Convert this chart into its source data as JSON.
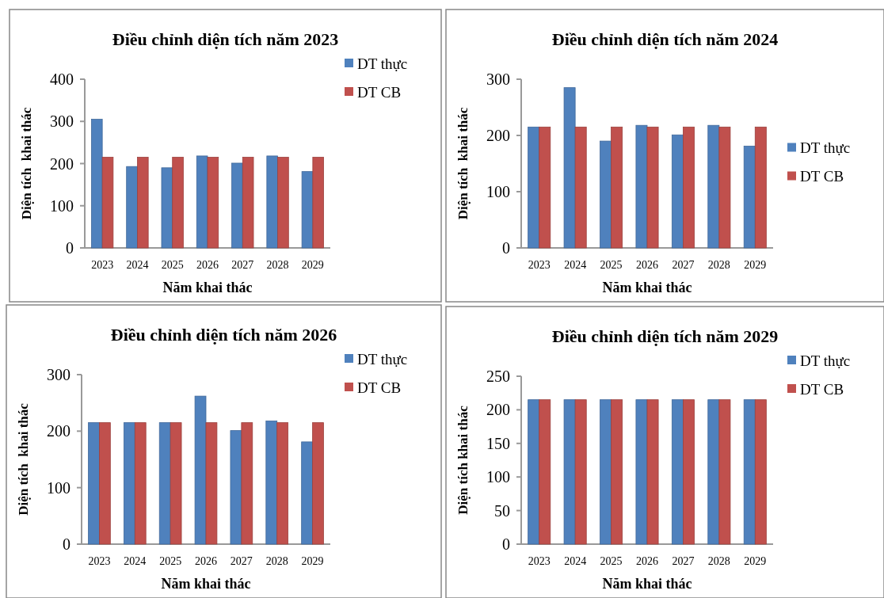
{
  "chart_data": [
    {
      "type": "bar",
      "title": "Điều chỉnh diện tích năm 2023",
      "xlabel": "Năm khai thác",
      "ylabel": "Diện tích  khai thác",
      "categories": [
        "2023",
        "2024",
        "2025",
        "2026",
        "2027",
        "2028",
        "2029"
      ],
      "series": [
        {
          "name": "DT thực",
          "color": "#4f81bd",
          "values": [
            305,
            193,
            190,
            218,
            201,
            218,
            181
          ]
        },
        {
          "name": "DT CB",
          "color": "#c0504d",
          "values": [
            215,
            215,
            215,
            215,
            215,
            215,
            215
          ]
        }
      ],
      "ylim": [
        0,
        400
      ],
      "yticks": [
        0,
        100,
        200,
        300,
        400
      ],
      "grid": false,
      "legend": "top right"
    },
    {
      "type": "bar",
      "title": "Điều chỉnh diện tích năm 2024",
      "xlabel": "Năm khai thác",
      "ylabel": "Diện tích  khai thác",
      "categories": [
        "2023",
        "2024",
        "2025",
        "2026",
        "2027",
        "2028",
        "2029"
      ],
      "series": [
        {
          "name": "DT thực",
          "color": "#4f81bd",
          "values": [
            215,
            285,
            190,
            218,
            201,
            218,
            181
          ]
        },
        {
          "name": "DT CB",
          "color": "#c0504d",
          "values": [
            215,
            215,
            215,
            215,
            215,
            215,
            215
          ]
        }
      ],
      "ylim": [
        0,
        300
      ],
      "yticks": [
        0,
        100,
        200,
        300
      ],
      "grid": false,
      "legend": "right"
    },
    {
      "type": "bar",
      "title": "Điều chỉnh diện tích năm 2026",
      "xlabel": "Năm khai thác",
      "ylabel": "Diện tích  khai thác",
      "categories": [
        "2023",
        "2024",
        "2025",
        "2026",
        "2027",
        "2028",
        "2029"
      ],
      "series": [
        {
          "name": "DT thực",
          "color": "#4f81bd",
          "values": [
            215,
            215,
            215,
            262,
            201,
            218,
            181
          ]
        },
        {
          "name": "DT CB",
          "color": "#c0504d",
          "values": [
            215,
            215,
            215,
            215,
            215,
            215,
            215
          ]
        }
      ],
      "ylim": [
        0,
        300
      ],
      "yticks": [
        0,
        100,
        200,
        300
      ],
      "grid": false,
      "legend": "top right"
    },
    {
      "type": "bar",
      "title": "Điều chỉnh diện tích năm 2029",
      "xlabel": "Năm khai thác",
      "ylabel": "Diện tích khai thác",
      "categories": [
        "2023",
        "2024",
        "2025",
        "2026",
        "2027",
        "2028",
        "2029"
      ],
      "series": [
        {
          "name": "DT thực",
          "color": "#4f81bd",
          "values": [
            215,
            215,
            215,
            215,
            215,
            215,
            215
          ]
        },
        {
          "name": "DT CB",
          "color": "#c0504d",
          "values": [
            215,
            215,
            215,
            215,
            215,
            215,
            215
          ]
        }
      ],
      "ylim": [
        0,
        250
      ],
      "yticks": [
        0,
        50,
        100,
        150,
        200,
        250
      ],
      "grid": false,
      "legend": "top right"
    }
  ]
}
